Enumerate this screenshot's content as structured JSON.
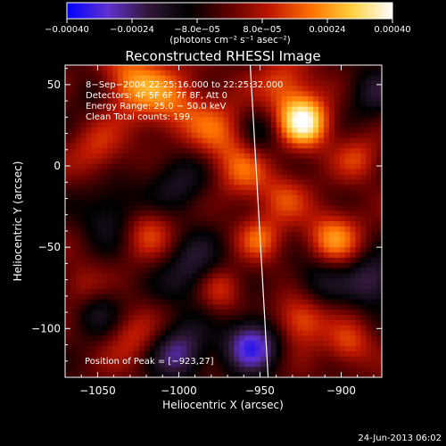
{
  "chart_data": {
    "type": "heatmap",
    "title": "Reconstructed RHESSI Image",
    "xlabel": "Heliocentric X (arcsec)",
    "ylabel": "Heliocentric Y (arcsec)",
    "xlim": [
      -1070,
      -875
    ],
    "ylim": [
      -130,
      62
    ],
    "x_ticks": [
      -1050,
      -1000,
      -950,
      -900
    ],
    "x_tick_labels": [
      "−1050",
      "−1000",
      "−950",
      "−900"
    ],
    "y_ticks": [
      50,
      0,
      -50,
      -100
    ],
    "y_tick_labels": [
      "50",
      "0",
      "−50",
      "−100"
    ],
    "colorbar": {
      "range": [
        -0.0004,
        0.0004
      ],
      "ticks": [
        -0.0004,
        -0.00024,
        -8e-05,
        8e-05,
        0.00024,
        0.0004
      ],
      "tick_labels": [
        "−0.00040",
        "−0.00024",
        "−8.0e−05",
        "8.0e−05",
        "0.00024",
        "0.00040"
      ],
      "units": "(photons cm⁻² s⁻¹ asec⁻²)",
      "colormap": [
        "#0000ff",
        "#6030d0",
        "#301838",
        "#000000",
        "#600000",
        "#c01800",
        "#ff7000",
        "#ffd040",
        "#ffffff"
      ]
    },
    "annotations": [
      "8−Sep−2004 22:25:16.000 to 22:25:32.000",
      "Detectors: 4F 5F 6F 7F 8F, Att 0",
      "Energy Range: 25.0 − 50.0 keV",
      "Clean    Total counts: 199."
    ],
    "peak_label": "Position of Peak = [−923,27]",
    "peak": [
      -923,
      27
    ],
    "limb_line": [
      [
        -956,
        62
      ],
      [
        -945,
        -130
      ]
    ],
    "sources": [
      {
        "x": -923,
        "y": 27,
        "amp": 1.0,
        "s": 11
      },
      {
        "x": -1030,
        "y": 52,
        "amp": 0.55,
        "s": 14
      },
      {
        "x": -1005,
        "y": 40,
        "amp": 0.45,
        "s": 15
      },
      {
        "x": -975,
        "y": 20,
        "amp": 0.45,
        "s": 14
      },
      {
        "x": -935,
        "y": 50,
        "amp": 0.45,
        "s": 12
      },
      {
        "x": -1050,
        "y": 10,
        "amp": 0.35,
        "s": 12
      },
      {
        "x": -1020,
        "y": -40,
        "amp": 0.45,
        "s": 12
      },
      {
        "x": -960,
        "y": -5,
        "amp": 0.4,
        "s": 12
      },
      {
        "x": -950,
        "y": -45,
        "amp": 0.45,
        "s": 10
      },
      {
        "x": -935,
        "y": -20,
        "amp": 0.35,
        "s": 11
      },
      {
        "x": -905,
        "y": -45,
        "amp": 0.6,
        "s": 12
      },
      {
        "x": -890,
        "y": 5,
        "amp": 0.35,
        "s": 10
      },
      {
        "x": -975,
        "y": -75,
        "amp": 0.5,
        "s": 10
      },
      {
        "x": -925,
        "y": -95,
        "amp": 0.55,
        "s": 11
      },
      {
        "x": -895,
        "y": -110,
        "amp": 0.4,
        "s": 10
      },
      {
        "x": -1030,
        "y": -105,
        "amp": 0.35,
        "s": 12
      },
      {
        "x": -1060,
        "y": -75,
        "amp": 0.3,
        "s": 10
      },
      {
        "x": -1000,
        "y": -10,
        "amp": -0.35,
        "s": 14
      },
      {
        "x": -1040,
        "y": -30,
        "amp": -0.4,
        "s": 14
      },
      {
        "x": -990,
        "y": -65,
        "amp": -0.45,
        "s": 15
      },
      {
        "x": -1050,
        "y": -90,
        "amp": -0.35,
        "s": 12
      },
      {
        "x": -955,
        "y": -110,
        "amp": -0.8,
        "s": 12
      },
      {
        "x": -1000,
        "y": -115,
        "amp": -0.6,
        "s": 12
      },
      {
        "x": -880,
        "y": -70,
        "amp": -0.5,
        "s": 12
      },
      {
        "x": -915,
        "y": -70,
        "amp": -0.35,
        "s": 12
      },
      {
        "x": -880,
        "y": 45,
        "amp": -0.35,
        "s": 12
      },
      {
        "x": -950,
        "y": 20,
        "amp": -0.3,
        "s": 10
      },
      {
        "x": -1055,
        "y": 45,
        "amp": -0.2,
        "s": 10
      }
    ]
  },
  "footer": {
    "timestamp": "24-Jun-2013 06:02"
  }
}
